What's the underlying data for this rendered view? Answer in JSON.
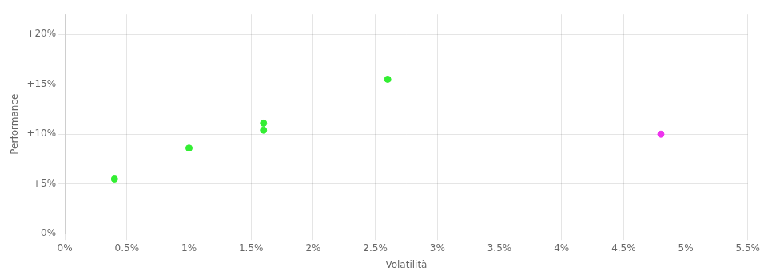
{
  "chart_data": {
    "type": "scatter",
    "xlabel": "Volatilità",
    "ylabel": "Performance",
    "x": [
      0.004,
      0.01,
      0.016,
      0.016,
      0.026,
      0.048
    ],
    "values": [
      0.055,
      0.086,
      0.111,
      0.104,
      0.155,
      0.1
    ],
    "colors": [
      "#33ee33",
      "#33ee33",
      "#33ee33",
      "#33ee33",
      "#33ee33",
      "#ee33ee"
    ],
    "xlim": [
      0.0,
      0.055
    ],
    "ylim": [
      0.0,
      0.22
    ],
    "xticks": [
      {
        "value": 0.0,
        "label": "0%"
      },
      {
        "value": 0.005,
        "label": "0.5%"
      },
      {
        "value": 0.01,
        "label": "1%"
      },
      {
        "value": 0.015,
        "label": "1.5%"
      },
      {
        "value": 0.02,
        "label": "2%"
      },
      {
        "value": 0.025,
        "label": "2.5%"
      },
      {
        "value": 0.03,
        "label": "3%"
      },
      {
        "value": 0.035,
        "label": "3.5%"
      },
      {
        "value": 0.04,
        "label": "4%"
      },
      {
        "value": 0.045,
        "label": "4.5%"
      },
      {
        "value": 0.05,
        "label": "5%"
      },
      {
        "value": 0.055,
        "label": "5.5%"
      }
    ],
    "yticks": [
      {
        "value": 0.0,
        "label": "0%"
      },
      {
        "value": 0.05,
        "label": "+5%"
      },
      {
        "value": 0.1,
        "label": "+10%"
      },
      {
        "value": 0.15,
        "label": "+15%"
      },
      {
        "value": 0.2,
        "label": "+20%"
      }
    ],
    "grid": true
  }
}
